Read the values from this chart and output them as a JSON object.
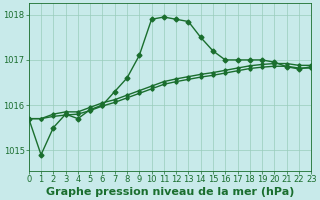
{
  "title": "Graphe pression niveau de la mer (hPa)",
  "background_color": "#c8eaea",
  "grid_color": "#99ccbb",
  "line_color": "#1a6e2e",
  "x_values": [
    0,
    1,
    2,
    3,
    4,
    5,
    6,
    7,
    8,
    9,
    10,
    11,
    12,
    13,
    14,
    15,
    16,
    17,
    18,
    19,
    20,
    21,
    22,
    23
  ],
  "y_main": [
    1015.7,
    1014.9,
    1015.5,
    1015.8,
    1015.7,
    1015.9,
    1016.0,
    1016.3,
    1016.6,
    1017.1,
    1017.9,
    1017.95,
    1017.9,
    1017.85,
    1017.5,
    1017.2,
    1017.0,
    1017.0,
    1017.0,
    1017.0,
    1016.95,
    1016.85,
    1016.8,
    1016.85
  ],
  "y_line2": [
    1015.7,
    1015.7,
    1015.8,
    1015.85,
    1015.85,
    1015.95,
    1016.05,
    1016.12,
    1016.22,
    1016.32,
    1016.42,
    1016.52,
    1016.58,
    1016.63,
    1016.68,
    1016.72,
    1016.77,
    1016.82,
    1016.87,
    1016.9,
    1016.92,
    1016.92,
    1016.88,
    1016.88
  ],
  "y_line3": [
    1015.7,
    1015.7,
    1015.75,
    1015.78,
    1015.8,
    1015.88,
    1015.98,
    1016.06,
    1016.16,
    1016.26,
    1016.36,
    1016.46,
    1016.52,
    1016.57,
    1016.62,
    1016.66,
    1016.71,
    1016.76,
    1016.81,
    1016.84,
    1016.86,
    1016.86,
    1016.82,
    1016.82
  ],
  "ylim": [
    1014.55,
    1018.25
  ],
  "xlim": [
    0,
    23
  ],
  "yticks": [
    1015,
    1016,
    1017,
    1018
  ],
  "xtick_labels": [
    "0",
    "1",
    "2",
    "3",
    "4",
    "5",
    "6",
    "7",
    "8",
    "9",
    "10",
    "11",
    "12",
    "13",
    "14",
    "15",
    "16",
    "17",
    "18",
    "19",
    "20",
    "21",
    "22",
    "23"
  ],
  "title_fontsize": 8,
  "tick_fontsize": 6,
  "line_width": 1.0,
  "marker_size": 2.5
}
